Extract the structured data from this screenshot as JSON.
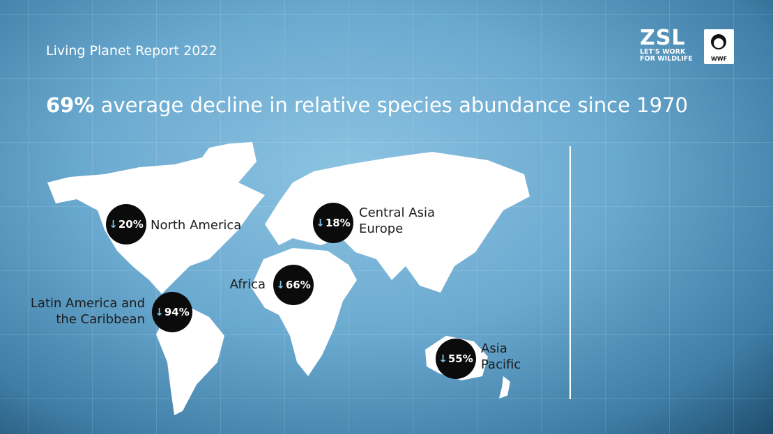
{
  "header": {
    "title": "Living Planet Report 2022"
  },
  "logos": {
    "zsl": "ZSL",
    "zsl_tagline": [
      "LET'S WORK",
      "FOR WILDLIFE"
    ],
    "wwf": "WWF"
  },
  "headline": {
    "figure": "69%",
    "text": "average decline in relative species abundance since 1970"
  },
  "regions": [
    {
      "name": [
        "North America"
      ],
      "change": "20%"
    },
    {
      "name": [
        "Central Asia",
        "Europe"
      ],
      "change": "18%"
    },
    {
      "name": [
        "Africa"
      ],
      "change": "66%"
    },
    {
      "name": [
        "Latin America and",
        "the Caribbean"
      ],
      "change": "94%"
    },
    {
      "name": [
        "Asia",
        "Pacific"
      ],
      "change": "55%"
    }
  ]
}
